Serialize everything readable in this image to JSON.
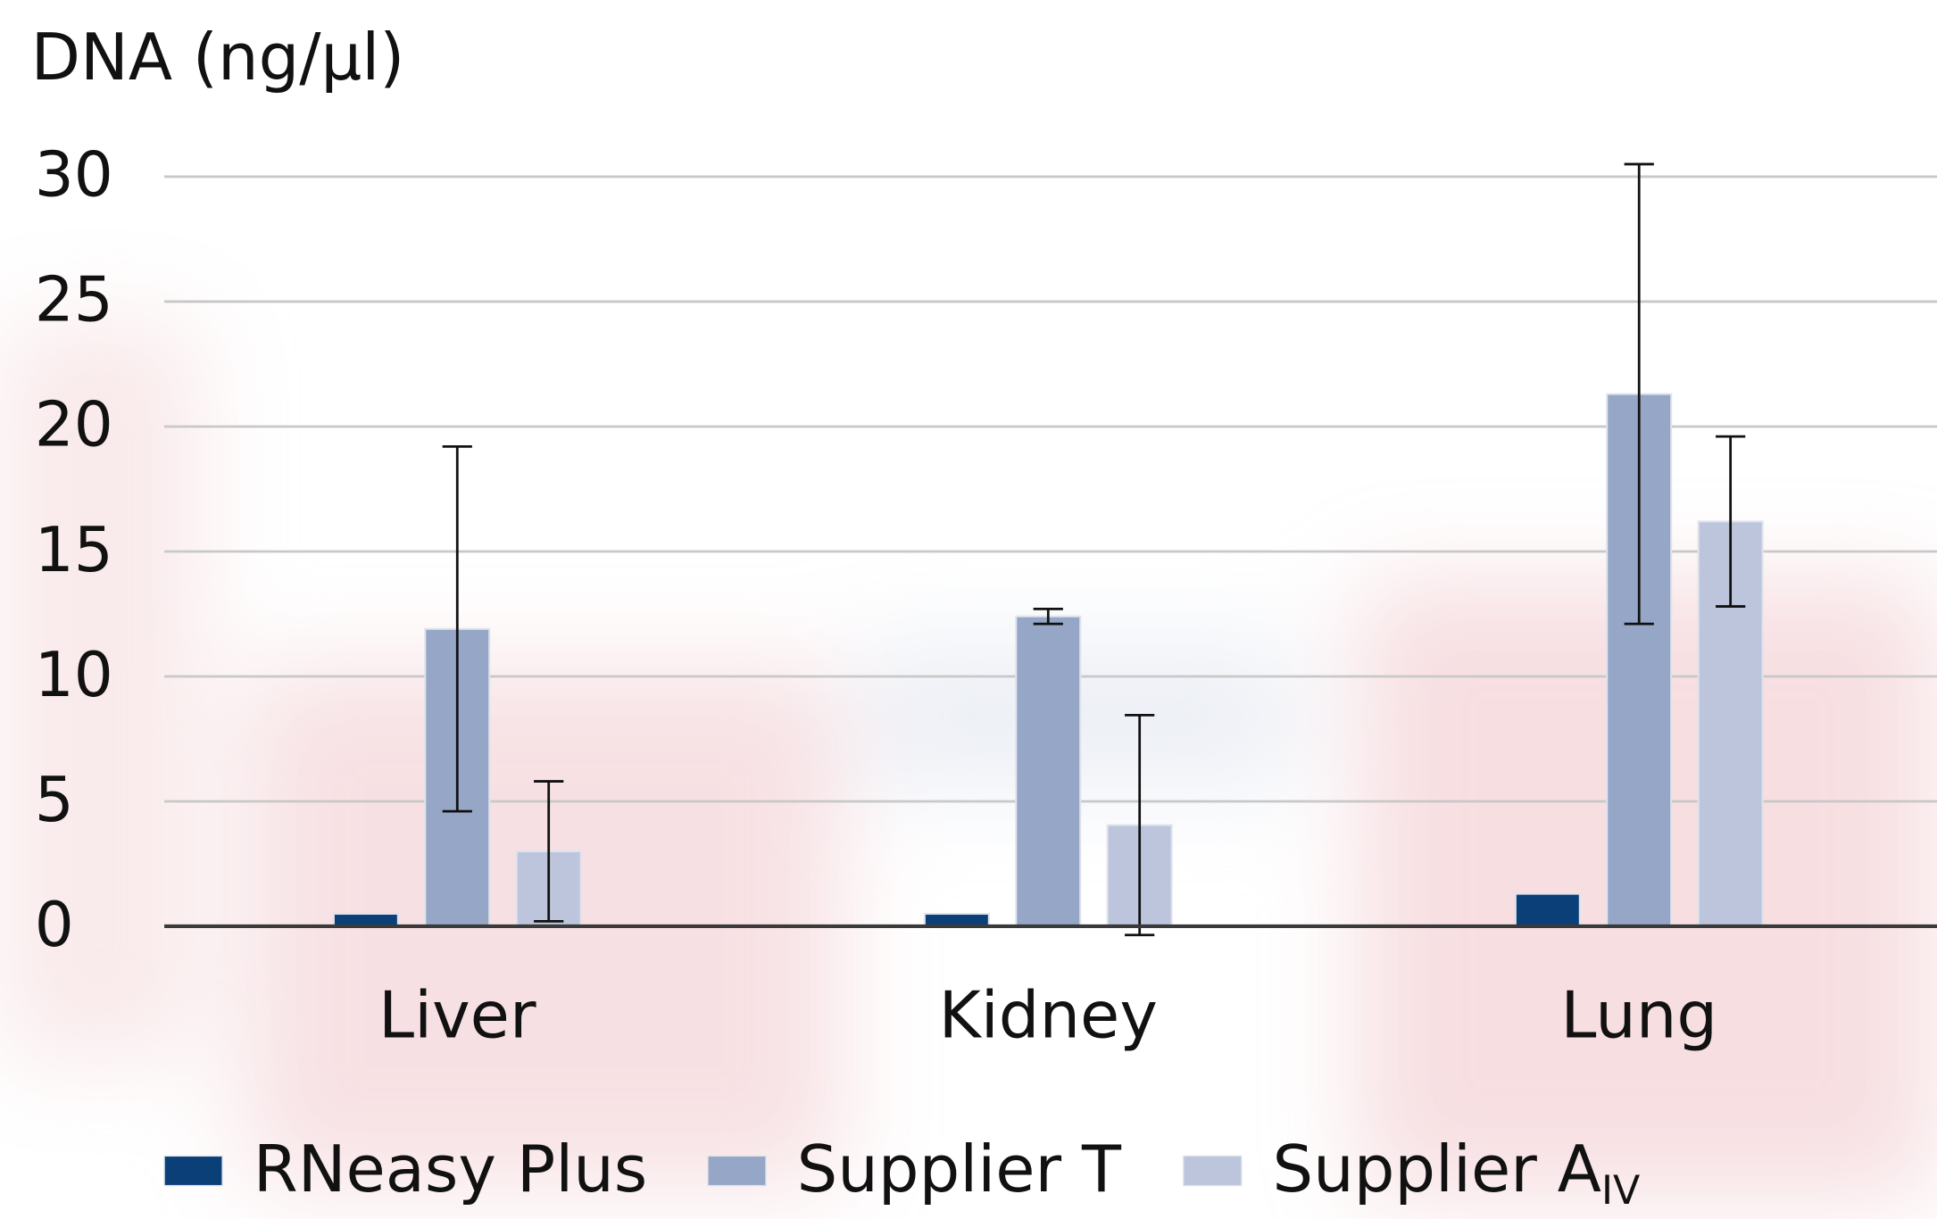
{
  "chart_data": {
    "type": "bar",
    "y_axis_label": "DNA (ng/µl)",
    "categories": [
      "Liver",
      "Kidney",
      "Lung"
    ],
    "series": [
      {
        "name": "RNeasy Plus",
        "color": "#0b3f78",
        "values": [
          0.5,
          0.5,
          1.3
        ]
      },
      {
        "name": "Supplier T",
        "color": "#95a6c6",
        "values": [
          11.9,
          12.4,
          21.3
        ],
        "errors": [
          7.3,
          0.3,
          9.2
        ]
      },
      {
        "name": "Supplier A",
        "name_subscript": "IV",
        "color": "#bcc5dc",
        "values": [
          3.0,
          4.05,
          16.2
        ],
        "errors": [
          2.8,
          4.4,
          3.4
        ]
      }
    ],
    "ylim": [
      0,
      30
    ],
    "yticks": [
      0,
      5,
      10,
      15,
      20,
      25,
      30
    ],
    "grid": true,
    "legend": "bottom"
  }
}
